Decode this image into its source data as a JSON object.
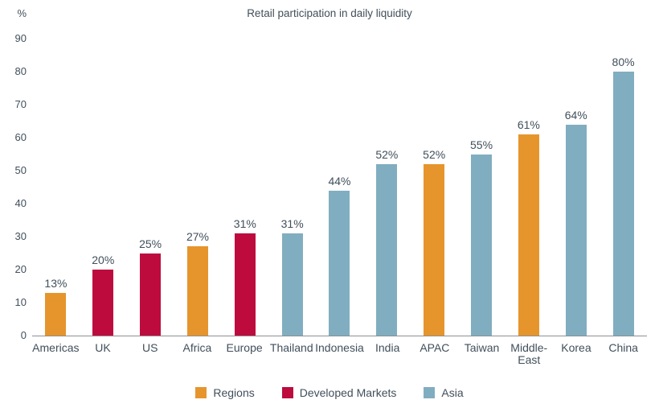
{
  "chart_data": {
    "type": "bar",
    "title": "Retail participation in daily liquidity",
    "ylabel": "%",
    "xlabel": "",
    "ylim": [
      0,
      90
    ],
    "yticks": [
      0,
      10,
      20,
      30,
      40,
      50,
      60,
      70,
      80,
      90
    ],
    "grid": false,
    "legend_position": "bottom",
    "categories": [
      "Americas",
      "UK",
      "US",
      "Africa",
      "Europe",
      "Thailand",
      "Indonesia",
      "India",
      "APAC",
      "Taiwan",
      "Middle-East",
      "Korea",
      "China"
    ],
    "values": [
      13,
      20,
      25,
      27,
      31,
      31,
      44,
      52,
      52,
      55,
      61,
      64,
      80
    ],
    "value_labels": [
      "13%",
      "20%",
      "25%",
      "27%",
      "31%",
      "31%",
      "44%",
      "52%",
      "52%",
      "55%",
      "61%",
      "64%",
      "80%"
    ],
    "bar_groups": [
      "Regions",
      "Developed Markets",
      "Developed Markets",
      "Regions",
      "Developed Markets",
      "Asia",
      "Asia",
      "Asia",
      "Regions",
      "Asia",
      "Regions",
      "Asia",
      "Asia"
    ],
    "legend": [
      {
        "label": "Regions",
        "color": "#E6952C"
      },
      {
        "label": "Developed Markets",
        "color": "#BD0B3E"
      },
      {
        "label": "Asia",
        "color": "#81ADC0"
      }
    ]
  },
  "colors": {
    "text": "#414F5B",
    "axis_line": "#8C9093",
    "background": "#FFFFFF"
  }
}
